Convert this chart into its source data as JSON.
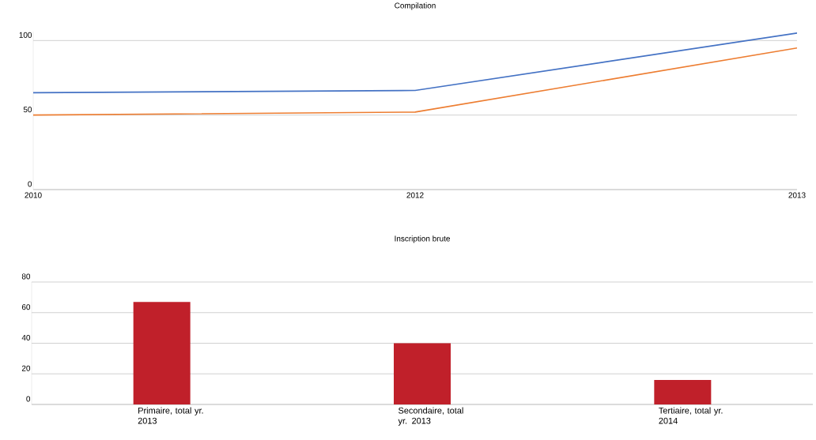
{
  "chart_data": [
    {
      "type": "line",
      "title": "Compilation",
      "categories": [
        "2010",
        "2012",
        "2013"
      ],
      "series": [
        {
          "color": "#4472c4",
          "values": [
            65,
            66.5,
            105
          ]
        },
        {
          "color": "#ed7d31",
          "values": [
            50,
            52,
            95
          ]
        }
      ],
      "ylim": [
        0,
        106
      ],
      "yticks": [
        0,
        50,
        100
      ],
      "grid": "y"
    },
    {
      "type": "bar",
      "title": "Inscription brute",
      "categories": [
        "Primaire, total yr. 2013",
        "Secondaire, total yr. 2013",
        "Tertiaire, total yr. 2014"
      ],
      "values": [
        67,
        40,
        16
      ],
      "color": "#c0202a",
      "ylim": [
        0,
        80
      ],
      "yticks": [
        0,
        20,
        40,
        60,
        80
      ],
      "grid": "y"
    }
  ]
}
